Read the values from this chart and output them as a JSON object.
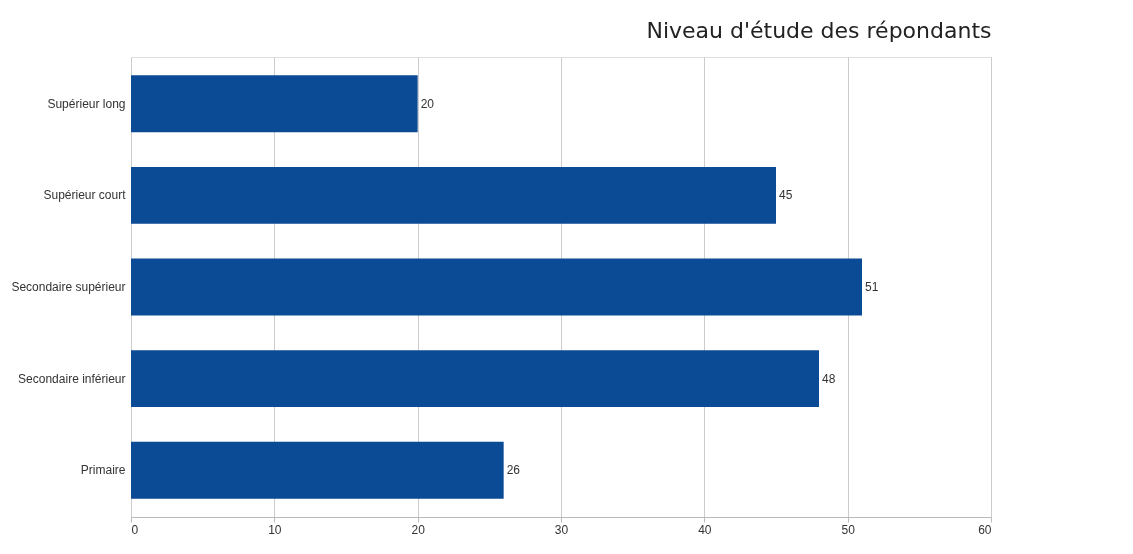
{
  "chart_data": {
    "type": "bar",
    "orientation": "horizontal",
    "title": "Niveau d'étude des répondants",
    "categories": [
      "Supérieur long",
      "Supérieur court",
      "Secondaire supérieur",
      "Secondaire inférieur",
      "Primaire"
    ],
    "values": [
      20,
      45,
      51,
      48,
      26
    ],
    "color": "#0b4a94",
    "xlim": [
      0,
      60
    ],
    "xticks": [
      0,
      10,
      20,
      30,
      40,
      50,
      60
    ],
    "grid": "x",
    "data_labels": true
  }
}
